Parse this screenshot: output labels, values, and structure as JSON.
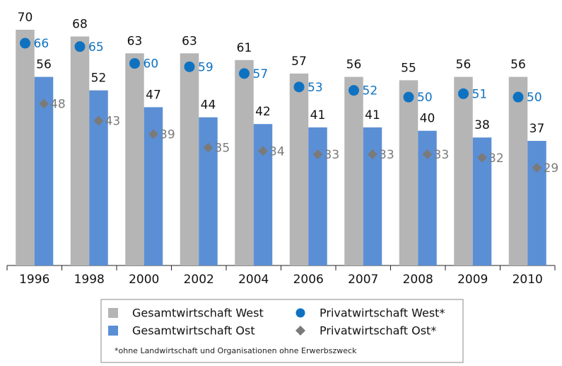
{
  "chart_data": {
    "type": "bar",
    "categories": [
      "1996",
      "1998",
      "2000",
      "2002",
      "2004",
      "2006",
      "2007",
      "2008",
      "2009",
      "2010"
    ],
    "series": [
      {
        "name": "Gesamtwirtschaft West",
        "color": "#b5b5b5",
        "mark": "bar",
        "values": [
          70,
          68,
          63,
          63,
          61,
          57,
          56,
          55,
          56,
          56
        ]
      },
      {
        "name": "Gesamtwirtschaft Ost",
        "color": "#5b8fd5",
        "mark": "bar",
        "values": [
          56,
          52,
          47,
          44,
          42,
          41,
          41,
          40,
          38,
          37
        ]
      },
      {
        "name": "Privatwirtschaft West*",
        "color": "#0f72c1",
        "mark": "circle",
        "values": [
          66,
          65,
          60,
          59,
          57,
          53,
          52,
          50,
          51,
          50
        ]
      },
      {
        "name": "Privatwirtschaft Ost*",
        "color": "#7a7a7a",
        "mark": "diamond",
        "values": [
          48,
          43,
          39,
          35,
          34,
          33,
          33,
          33,
          32,
          29
        ]
      }
    ],
    "footnote": "*ohne Landwirtschaft und Organisationen ohne Erwerbszweck"
  }
}
